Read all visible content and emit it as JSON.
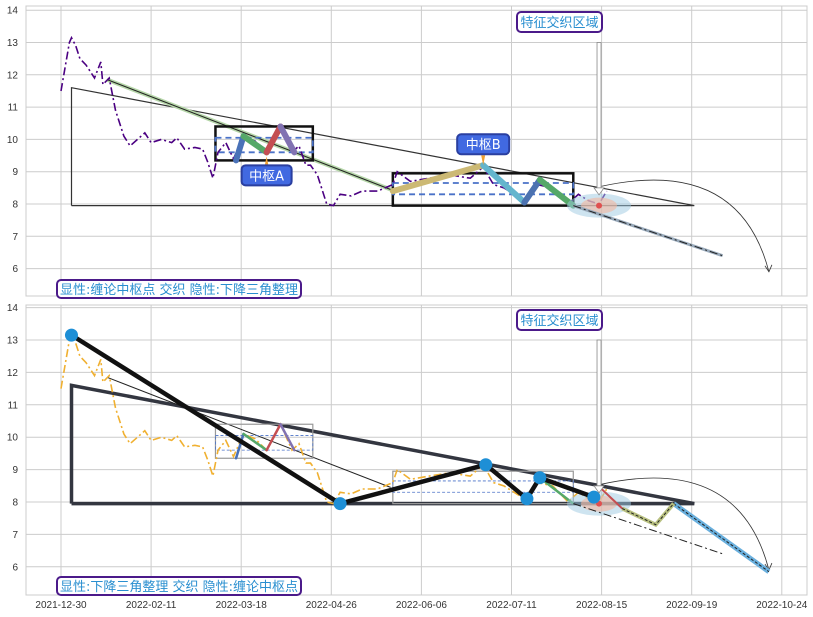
{
  "chart_data": [
    {
      "type": "line",
      "panel": "top",
      "ylim": [
        5.15,
        14.15
      ],
      "yticks": [
        6,
        7,
        8,
        9,
        10,
        11,
        12,
        13,
        14
      ],
      "grid": true,
      "price_color": "#4b0082",
      "price_style": "dashdot",
      "label_bottom": "显性:缠论中枢点 交织 隐性:下降三角整理",
      "label_region": "特征交织区域",
      "zs_a_label": "中枢A",
      "zs_b_label": "中枢B"
    },
    {
      "type": "line",
      "panel": "bottom",
      "ylim": [
        5.15,
        14.15
      ],
      "yticks": [
        6,
        7,
        8,
        9,
        10,
        11,
        12,
        13,
        14
      ],
      "grid": true,
      "price_color": "#f0b030",
      "price_style": "dashdot",
      "label_bottom": "显性:下降三角整理 交织 隐性:缠论中枢点",
      "label_region": "特征交织区域",
      "xticks": [
        "2021-12-30",
        "2022-02-11",
        "2022-03-18",
        "2022-04-26",
        "2022-06-06",
        "2022-07-11",
        "2022-08-15",
        "2022-09-19",
        "2022-10-24"
      ]
    }
  ],
  "price": [
    [
      "2021-12-30",
      11.5
    ],
    [
      "2022-01-03",
      13.0
    ],
    [
      "2022-01-04",
      13.15
    ],
    [
      "2022-01-06",
      12.9
    ],
    [
      "2022-01-08",
      12.5
    ],
    [
      "2022-01-11",
      12.3
    ],
    [
      "2022-01-15",
      11.9
    ],
    [
      "2022-01-18",
      12.4
    ],
    [
      "2022-01-19",
      11.7
    ],
    [
      "2022-01-22",
      11.9
    ],
    [
      "2022-01-25",
      10.9
    ],
    [
      "2022-01-29",
      10.1
    ],
    [
      "2022-02-01",
      9.8
    ],
    [
      "2022-02-08",
      10.2
    ],
    [
      "2022-02-11",
      9.9
    ],
    [
      "2022-02-15",
      10.0
    ],
    [
      "2022-02-19",
      9.9
    ],
    [
      "2022-02-21",
      10.05
    ],
    [
      "2022-02-24",
      9.7
    ],
    [
      "2022-02-28",
      9.75
    ],
    [
      "2022-03-03",
      9.7
    ],
    [
      "2022-03-05",
      9.3
    ],
    [
      "2022-03-07",
      8.8
    ],
    [
      "2022-03-09",
      9.6
    ],
    [
      "2022-03-12",
      9.9
    ],
    [
      "2022-03-15",
      9.4
    ],
    [
      "2022-03-19",
      10.1
    ],
    [
      "2022-03-24",
      9.95
    ],
    [
      "2022-03-29",
      9.6
    ],
    [
      "2022-04-04",
      10.4
    ],
    [
      "2022-04-09",
      9.6
    ],
    [
      "2022-04-12",
      9.8
    ],
    [
      "2022-04-15",
      9.2
    ],
    [
      "2022-04-17",
      9.2
    ],
    [
      "2022-04-20",
      8.9
    ],
    [
      "2022-04-24",
      8.0
    ],
    [
      "2022-04-27",
      7.95
    ],
    [
      "2022-04-30",
      8.3
    ],
    [
      "2022-05-05",
      8.25
    ],
    [
      "2022-05-10",
      8.4
    ],
    [
      "2022-05-17",
      8.4
    ],
    [
      "2022-05-24",
      8.6
    ],
    [
      "2022-05-26",
      9.0
    ],
    [
      "2022-06-01",
      8.7
    ],
    [
      "2022-06-09",
      8.8
    ],
    [
      "2022-06-17",
      8.9
    ],
    [
      "2022-06-25",
      8.8
    ],
    [
      "2022-06-30",
      9.15
    ],
    [
      "2022-07-04",
      8.6
    ],
    [
      "2022-07-08",
      8.5
    ],
    [
      "2022-07-12",
      8.3
    ],
    [
      "2022-07-16",
      8.1
    ],
    [
      "2022-07-21",
      8.6
    ],
    [
      "2022-07-27",
      8.5
    ],
    [
      "2022-08-02",
      8.0
    ],
    [
      "2022-08-06",
      8.3
    ],
    [
      "2022-08-10",
      8.1
    ],
    [
      "2022-08-14",
      8.0
    ],
    [
      "2022-08-17",
      8.4
    ]
  ],
  "triangle": {
    "apex": [
      "2022-01-04",
      11.6
    ],
    "base_start": [
      "2022-01-04",
      7.95
    ],
    "end": [
      "2022-09-20",
      7.95
    ]
  },
  "downtrend": [
    [
      "2022-01-21",
      11.85
    ],
    [
      "2022-05-23",
      8.45
    ]
  ],
  "zs_a": {
    "start": "2022-03-08",
    "end": "2022-04-18",
    "high": 10.4,
    "low": 9.35,
    "zg": 10.05,
    "zd": 9.6,
    "anchor": [
      "2022-03-29",
      9.6
    ]
  },
  "zs_b": {
    "start": "2022-05-24",
    "end": "2022-08-04",
    "high": 8.95,
    "low": 7.95,
    "zg": 8.65,
    "zd": 8.3,
    "anchor": [
      "2022-06-30",
      9.2
    ]
  },
  "strokes_a": [
    {
      "from": [
        "2022-03-16",
        9.35
      ],
      "to": [
        "2022-03-19",
        10.1
      ],
      "color": "#4a72b8"
    },
    {
      "from": [
        "2022-03-19",
        10.1
      ],
      "to": [
        "2022-03-29",
        9.6
      ],
      "color": "#55a868"
    },
    {
      "from": [
        "2022-03-29",
        9.6
      ],
      "to": [
        "2022-04-04",
        10.4
      ],
      "color": "#c44e52"
    },
    {
      "from": [
        "2022-04-04",
        10.4
      ],
      "to": [
        "2022-04-10",
        9.6
      ],
      "color": "#8172b2"
    }
  ],
  "strokes_b": [
    {
      "from": [
        "2022-05-24",
        8.4
      ],
      "to": [
        "2022-06-30",
        9.2
      ],
      "color": "#ccb974"
    },
    {
      "from": [
        "2022-06-30",
        9.2
      ],
      "to": [
        "2022-07-16",
        8.05
      ],
      "color": "#64b5cd"
    },
    {
      "from": [
        "2022-07-16",
        8.05
      ],
      "to": [
        "2022-07-22",
        8.75
      ],
      "color": "#4c72b0"
    },
    {
      "from": [
        "2022-07-22",
        8.75
      ],
      "to": [
        "2022-08-04",
        7.95
      ],
      "color": "#55a868"
    }
  ],
  "projection": [
    [
      "2022-08-04",
      7.95
    ],
    [
      "2022-10-01",
      6.4
    ]
  ],
  "arc": [
    [
      "2022-08-15",
      8.55
    ],
    [
      "2022-10-19",
      5.9
    ]
  ],
  "focus": [
    "2022-08-14",
    7.95
  ],
  "region_arrow": {
    "from": [
      "2022-08-14",
      13.0
    ],
    "to": [
      "2022-08-14",
      8.5
    ]
  },
  "bottom_path": [
    [
      "2022-01-04",
      13.15
    ],
    [
      "2022-04-30",
      7.95
    ],
    [
      "2022-07-01",
      9.15
    ],
    [
      "2022-07-17",
      8.1
    ],
    [
      "2022-07-22",
      8.75
    ],
    [
      "2022-08-12",
      8.15
    ]
  ],
  "bottom_forecast": {
    "red": [
      [
        "2022-08-15",
        8.4
      ],
      [
        "2022-08-23",
        7.8
      ]
    ],
    "olive": [
      [
        "2022-08-23",
        7.8
      ],
      [
        "2022-09-05",
        7.3
      ],
      [
        "2022-09-12",
        7.95
      ]
    ],
    "blue": [
      [
        "2022-09-12",
        7.95
      ],
      [
        "2022-10-19",
        5.85
      ]
    ]
  }
}
